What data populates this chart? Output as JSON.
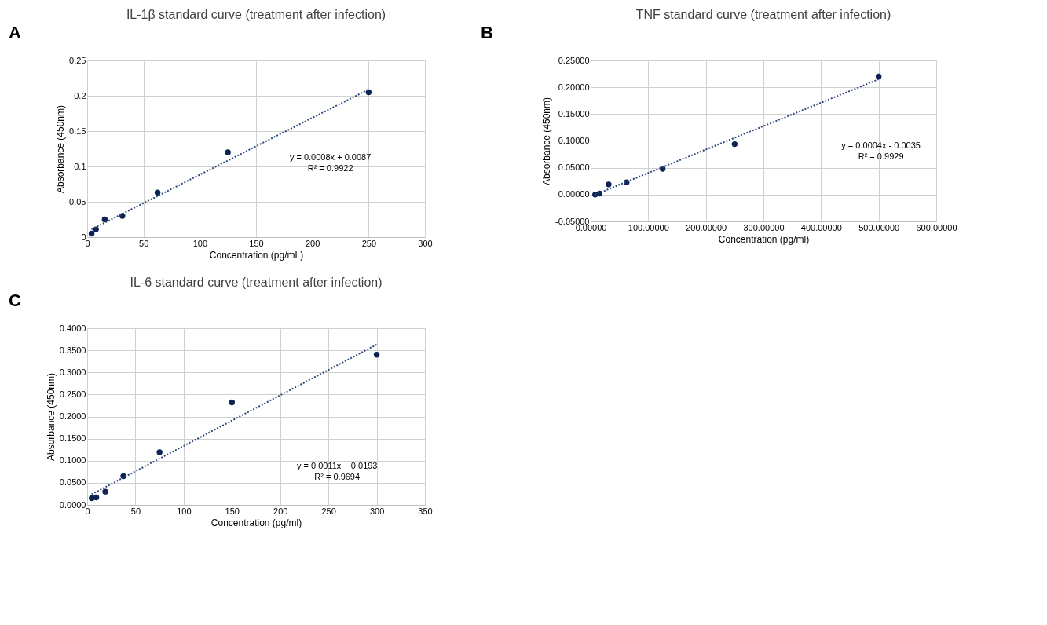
{
  "chart_data": [
    {
      "type": "scatter",
      "title": "IL-1β standard curve (treatment after infection)",
      "xlabel": "Concentration (pg/mL)",
      "ylabel": "Absorbance (450nm)",
      "grid": true,
      "xlim": [
        0,
        300
      ],
      "xticks": [
        0,
        50,
        100,
        150,
        200,
        250,
        300
      ],
      "ylim": [
        0,
        0.25
      ],
      "yticks": [
        0,
        0.05,
        0.1,
        0.15,
        0.2,
        0.25
      ],
      "series": [
        {
          "type": "scatter",
          "marker": "circle",
          "color": "#0d2353",
          "x": [
            3.9,
            7.8,
            15.6,
            31.25,
            62.5,
            125,
            250
          ],
          "values": [
            0.005,
            0.011,
            0.025,
            0.03,
            0.063,
            0.12,
            0.205
          ]
        },
        {
          "type": "line",
          "line_style": "dotted",
          "color": "#2f4a7a",
          "x": [
            3.9,
            250
          ],
          "values": [
            0.011,
            0.209
          ]
        }
      ],
      "annotations": [
        "A",
        "y = 0.0008x + 0.0087",
        "R² = 0.9922"
      ]
    },
    {
      "type": "scatter",
      "title": "TNF standard curve (treatment after infection)",
      "xlabel": "Concentration (pg/ml)",
      "ylabel": "Absorbance (450nm)",
      "grid": true,
      "xlim": [
        0,
        600
      ],
      "xticks": [
        {
          "value": 0,
          "label": "0.00000"
        },
        {
          "value": 100,
          "label": "100.00000"
        },
        {
          "value": 200,
          "label": "200.00000"
        },
        {
          "value": 300,
          "label": "300.00000"
        },
        {
          "value": 400,
          "label": "400.00000"
        },
        {
          "value": 500,
          "label": "500.00000"
        },
        {
          "value": 600,
          "label": "600.00000"
        }
      ],
      "ylim": [
        -0.05,
        0.25
      ],
      "yticks": [
        {
          "value": -0.05,
          "label": "-0.05000"
        },
        {
          "value": 0,
          "label": "0.00000"
        },
        {
          "value": 0.05,
          "label": "0.05000"
        },
        {
          "value": 0.1,
          "label": "0.10000"
        },
        {
          "value": 0.15,
          "label": "0.15000"
        },
        {
          "value": 0.2,
          "label": "0.20000"
        },
        {
          "value": 0.25,
          "label": "0.25000"
        }
      ],
      "series": [
        {
          "type": "scatter",
          "marker": "circle",
          "color": "#0d2353",
          "x": [
            7.8,
            15.6,
            31.25,
            62.5,
            125,
            250,
            500
          ],
          "values": [
            0.0,
            0.002,
            0.019,
            0.023,
            0.048,
            0.094,
            0.22
          ]
        },
        {
          "type": "line",
          "line_style": "dotted",
          "color": "#2f4a7a",
          "x": [
            7.8,
            500
          ],
          "values": [
            0.0,
            0.215
          ]
        }
      ],
      "annotations": [
        "B",
        "y = 0.0004x - 0.0035",
        "R² = 0.9929"
      ]
    },
    {
      "type": "scatter",
      "title": "IL-6 standard curve (treatment after infection)",
      "xlabel": "Concentration (pg/ml)",
      "ylabel": "Absorbance (450nm)",
      "grid": true,
      "xlim": [
        0,
        350
      ],
      "xticks": [
        0,
        50,
        100,
        150,
        200,
        250,
        300,
        350
      ],
      "ylim": [
        0,
        0.4
      ],
      "yticks": [
        {
          "value": 0,
          "label": "0.0000"
        },
        {
          "value": 0.05,
          "label": "0.0500"
        },
        {
          "value": 0.1,
          "label": "0.1000"
        },
        {
          "value": 0.15,
          "label": "0.1500"
        },
        {
          "value": 0.2,
          "label": "0.2000"
        },
        {
          "value": 0.25,
          "label": "0.2500"
        },
        {
          "value": 0.3,
          "label": "0.3000"
        },
        {
          "value": 0.35,
          "label": "0.3500"
        },
        {
          "value": 0.4,
          "label": "0.4000"
        }
      ],
      "series": [
        {
          "type": "scatter",
          "marker": "circle",
          "color": "#0d2353",
          "x": [
            4.7,
            9.4,
            18.75,
            37.5,
            75,
            150,
            300
          ],
          "values": [
            0.015,
            0.017,
            0.03,
            0.065,
            0.119,
            0.232,
            0.34
          ]
        },
        {
          "type": "line",
          "line_style": "dotted",
          "color": "#2f4a7a",
          "x": [
            4.7,
            300
          ],
          "values": [
            0.024,
            0.363
          ]
        }
      ],
      "annotations": [
        "C",
        "y = 0.0011x + 0.0193",
        "R² = 0.9694"
      ]
    }
  ]
}
